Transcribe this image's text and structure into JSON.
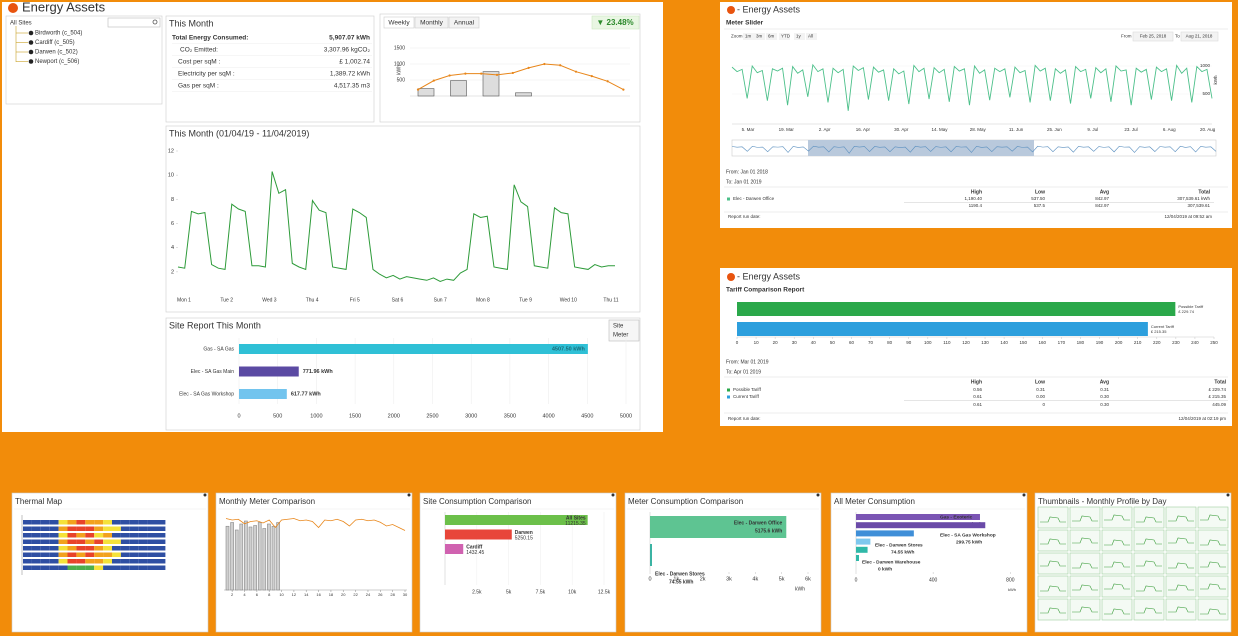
{
  "main": {
    "title": "Energy Assets",
    "sites": {
      "root": "All Sites",
      "items": [
        "Birdworth (c_504)",
        "Cardiff (c_505)",
        "Darwen (c_502)",
        "Newport (c_506)"
      ]
    },
    "this_month": {
      "title": "This Month",
      "rows": [
        {
          "label": "Total Energy Consumed:",
          "value": "5,907.07 kWh"
        },
        {
          "label": "CO₂ Emitted:",
          "value": "3,307.96 kgCO₂"
        },
        {
          "label": "Cost per sqM :",
          "value": "£ 1,002.74"
        },
        {
          "label": "Electricity per sqM :",
          "value": "1,389.72 kWh"
        },
        {
          "label": "Gas per sqM :",
          "value": "4,517.35 m3"
        }
      ]
    },
    "trend": {
      "tabs": [
        "Weekly",
        "Monthly",
        "Annual"
      ],
      "change": "▼ 23.48%",
      "axis_label": "kWh",
      "ylim": [
        0,
        1750
      ],
      "yticks": [
        500,
        1000,
        1500
      ],
      "bars": [
        230,
        480,
        760,
        100
      ],
      "line": [
        200,
        480,
        640,
        700,
        700,
        660,
        720,
        880,
        1000,
        960,
        760,
        620,
        460,
        200
      ]
    },
    "month": {
      "title": "This Month (01/04/19 - 11/04/2019)",
      "ylim": [
        0,
        12
      ],
      "yticks": [
        2,
        4,
        6,
        8,
        10,
        12
      ],
      "categories": [
        "Mon 1",
        "Tue 2",
        "Wed 3",
        "Thu 4",
        "Fri 5",
        "Sat 6",
        "Sun 7",
        "Mon 8",
        "Tue 9",
        "Wed 10",
        "Thu 11"
      ],
      "values": [
        2.4,
        2.3,
        7.0,
        6.8,
        6.9,
        2.6,
        2.3,
        2.2,
        7.6,
        7.2,
        7.0,
        2.5,
        2.5,
        2.4,
        10.3,
        8.5,
        8.8,
        2.7,
        2.4,
        2.2,
        7.9,
        7.1,
        6.9,
        2.4,
        2.3,
        2.2,
        7.2,
        6.9,
        6.5,
        2.2,
        1.8,
        1.5,
        1.7,
        1.4,
        1.6,
        1.5,
        1.4,
        1.3,
        1.5,
        1.2,
        1.4,
        1.3,
        1.9,
        2.2,
        6.8,
        6.5,
        6.6,
        2.4,
        2.3,
        2.2,
        9.2,
        7.8,
        7.4,
        2.5,
        2.4,
        2.3,
        7.3,
        6.9,
        6.8,
        2.4,
        2.3,
        2.2,
        2.6,
        2.4,
        2.5,
        2.5
      ]
    },
    "site_report": {
      "title": "Site Report This Month",
      "toggles": [
        "Site",
        "Meter"
      ],
      "categories": [
        "Gas - SA Gas",
        "Elec - SA Gas Main",
        "Elec - SA Gas Workshop"
      ],
      "values": [
        4507.5,
        771.96,
        617.77
      ],
      "value_labels": [
        "4507.50 kWh",
        "771.96 kWh",
        "617.77 kWh"
      ],
      "colors": [
        "#2fc0d6",
        "#5b4aa3",
        "#72c4ee"
      ],
      "xlim": [
        0,
        5000
      ],
      "xticks": [
        0,
        500,
        1000,
        1500,
        2000,
        2500,
        3000,
        3500,
        4000,
        4500,
        5000
      ]
    }
  },
  "meter_slider": {
    "title": "- Energy Assets",
    "subtitle": "Meter Slider",
    "zoom": [
      "Zoom",
      "1m",
      "3m",
      "6m",
      "YTD",
      "1y",
      "All"
    ],
    "range": {
      "from_label": "From",
      "from": "Feb 25, 2018",
      "to_label": "To",
      "to": "Aug 21, 2018"
    },
    "axis_label": "kWh",
    "ylim": [
      0,
      1500
    ],
    "yticks": [
      500,
      1000
    ],
    "categories": [
      "5. Mar",
      "19. Mar",
      "2. Apr",
      "16. Apr",
      "30. Apr",
      "14. May",
      "28. May",
      "11. Jun",
      "25. Jun",
      "9. Jul",
      "23. Jul",
      "6. Aug",
      "20. Aug"
    ],
    "values": [
      980,
      900,
      940,
      420,
      1000,
      880,
      920,
      380,
      950,
      910,
      960,
      300,
      990,
      870,
      930,
      450,
      1020,
      900,
      950,
      350,
      960,
      880,
      940,
      200,
      1000,
      920,
      970,
      400,
      980,
      890,
      930,
      380,
      950,
      860,
      910,
      320,
      1010,
      900,
      960,
      410,
      970,
      880,
      940,
      360,
      990,
      910,
      950,
      300,
      1000,
      870,
      930,
      390,
      960,
      900,
      950,
      440,
      980,
      880,
      920,
      350,
      1010,
      910,
      960,
      380,
      950,
      870,
      930,
      330,
      990,
      900,
      940,
      420,
      970,
      880,
      950,
      360,
      1000,
      910,
      930,
      300,
      960,
      890,
      940,
      400,
      980,
      900,
      950,
      380,
      1010,
      870,
      960,
      350,
      990,
      900,
      940,
      420
    ],
    "from": "From: Jan 01 2018",
    "to": "To: Jan 01 2019",
    "headers": [
      "High",
      "Low",
      "Avg",
      "Total"
    ],
    "rows": [
      [
        "Elec - Darwen Office",
        "1,190.40",
        "537.50",
        "842.97",
        "307,539.61 kWh"
      ]
    ],
    "totals": [
      "1190.4",
      "537.5",
      "842.97",
      "307,539.61"
    ],
    "run_label": "Report run date:",
    "run_date": "12/04/2019 at 09:52 am"
  },
  "tariff": {
    "title": "- Energy Assets",
    "subtitle": "Tariff Comparison Report",
    "categories": [
      "Possible Tariff",
      "Current Tariff"
    ],
    "values": [
      229.74,
      215.35
    ],
    "value_labels": [
      "£ 229.74",
      "£ 215.35"
    ],
    "colors": [
      "#2aa84a",
      "#2c9fdd"
    ],
    "xlim": [
      0,
      250
    ],
    "xticks": [
      0,
      10,
      20,
      30,
      40,
      50,
      60,
      70,
      80,
      90,
      100,
      110,
      120,
      130,
      140,
      150,
      160,
      170,
      180,
      190,
      200,
      210,
      220,
      230,
      240,
      250
    ],
    "from": "From: Mar 01 2019",
    "to": "To: Apr 01 2019",
    "headers": [
      "High",
      "Low",
      "Avg",
      "Total"
    ],
    "rows": [
      [
        "Possible Tariff",
        "0.56",
        "0.31",
        "0.31",
        "£ 229.74"
      ],
      [
        "Current Tariff",
        "0.61",
        "0.00",
        "0.30",
        "£ 215.35"
      ]
    ],
    "totals": [
      "0.61",
      "0",
      "0.30",
      "445.09"
    ],
    "run_label": "Report run date:",
    "run_date": "12/04/2019 at 02:19 pm"
  },
  "panels": {
    "thermal": {
      "title": "Thermal Map",
      "colors": [
        "#2f4fa3",
        "#f5e23a",
        "#f2a21d",
        "#e8432b",
        "#4cae4c"
      ],
      "rows": [
        [
          0,
          0,
          0,
          0,
          1,
          2,
          3,
          2,
          2,
          1,
          0,
          0,
          0,
          0,
          0,
          0
        ],
        [
          0,
          0,
          0,
          0,
          2,
          3,
          3,
          3,
          2,
          1,
          1,
          0,
          0,
          0,
          0,
          0
        ],
        [
          0,
          0,
          0,
          0,
          1,
          3,
          2,
          3,
          1,
          2,
          0,
          0,
          0,
          0,
          0,
          0
        ],
        [
          0,
          0,
          0,
          0,
          2,
          3,
          3,
          2,
          3,
          1,
          1,
          0,
          0,
          0,
          0,
          0
        ],
        [
          0,
          0,
          0,
          0,
          1,
          2,
          3,
          3,
          2,
          1,
          0,
          0,
          0,
          0,
          0,
          0
        ],
        [
          0,
          0,
          0,
          0,
          2,
          3,
          2,
          3,
          2,
          2,
          1,
          0,
          0,
          0,
          0,
          0
        ],
        [
          0,
          0,
          0,
          0,
          1,
          3,
          3,
          2,
          2,
          1,
          0,
          0,
          0,
          0,
          0,
          0
        ],
        [
          0,
          0,
          0,
          0,
          0,
          4,
          4,
          4,
          1,
          0,
          0,
          0,
          0,
          0,
          0,
          0
        ]
      ]
    },
    "monthly": {
      "title": "Monthly Meter Comparison",
      "ylim": [
        0,
        100
      ],
      "xlim": [
        1,
        30
      ],
      "xticks": [
        2,
        4,
        6,
        8,
        10,
        12,
        14,
        16,
        18,
        20,
        22,
        24,
        26,
        28,
        30
      ],
      "bars": [
        85,
        90,
        80,
        88,
        92,
        84,
        86,
        90,
        82,
        88,
        85,
        90
      ],
      "line": [
        82,
        80,
        81,
        75,
        78,
        79,
        76,
        80,
        70,
        80,
        81,
        82,
        79,
        80,
        78,
        70,
        80,
        79,
        81,
        78,
        72,
        80,
        81,
        79,
        80,
        77,
        72,
        74,
        70,
        66
      ]
    },
    "site": {
      "title": "Site Consumption Comparison",
      "categories": [
        "All Sites",
        "Darwen",
        "Cardiff"
      ],
      "values": [
        11215.35,
        5250.15,
        1432.45
      ],
      "colors": [
        "#6cc04a",
        "#e8463a",
        "#d062b0"
      ],
      "xlim": [
        0,
        12500
      ],
      "xticks": [
        {
          "value": 2500,
          "label": "2.5k"
        },
        {
          "value": 5000,
          "label": "5k"
        },
        {
          "value": 7500,
          "label": "7.5k"
        },
        {
          "value": 10000,
          "label": "10k"
        },
        {
          "value": 12500,
          "label": "12.5k"
        }
      ]
    },
    "meter": {
      "title": "Meter Consumption Comparison",
      "categories": [
        "Elec - Darwen Office",
        "Elec - Darwen Stores"
      ],
      "values": [
        5175.6,
        74.55
      ],
      "value_labels": [
        "5175.6 kWh",
        "74.55 kWh"
      ],
      "colors": [
        "#5ec492",
        "#3bb3a3"
      ],
      "xlim": [
        0,
        6000
      ],
      "axis_label": "kWh",
      "xticks": [
        0,
        {
          "value": 1000,
          "label": "1k"
        },
        {
          "value": 2000,
          "label": "2k"
        },
        {
          "value": 3000,
          "label": "3k"
        },
        {
          "value": 4000,
          "label": "4k"
        },
        {
          "value": 5000,
          "label": "5k"
        },
        {
          "value": 6000,
          "label": "6k"
        }
      ]
    },
    "all_meter": {
      "title": "All Meter Consumption",
      "categories": [
        "Gas - Exoteric",
        null,
        "Elec - SA Gas Workshop",
        "Elec - Darwen Stores",
        null,
        "Elec - Darwen Warehouse"
      ],
      "values": [
        642.55,
        670,
        299.75,
        74.55,
        60,
        0
      ],
      "value_labels": [
        "642.55 kWh",
        null,
        "299.75 kWh",
        "74.55 kWh",
        null,
        "0 kWh"
      ],
      "colors": [
        "#7b55b4",
        "#6a4aa8",
        "#3f8fd8",
        "#7ec8ee",
        "#2fb8a8",
        "#2fb8a8"
      ],
      "xlim": [
        0,
        850
      ],
      "xticks": [
        0,
        400,
        800
      ],
      "axis_label": "kWh"
    },
    "thumbnails": {
      "title": "Thumbnails - Monthly Profile by Day"
    }
  }
}
